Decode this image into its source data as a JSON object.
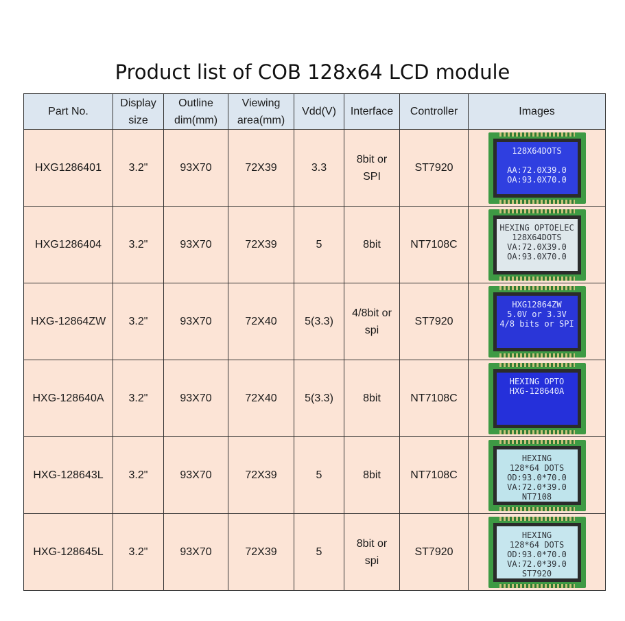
{
  "title": "Product list of COB 128x64 LCD module",
  "headers": {
    "part_no": "Part No.",
    "display_size_1": "Display",
    "display_size_2": "size",
    "outline_1": "Outline",
    "outline_2": "dim(mm)",
    "viewing_1": "Viewing",
    "viewing_2": "area(mm)",
    "vdd": "Vdd(V)",
    "interface": "Interface",
    "controller": "Controller",
    "images": "Images"
  },
  "rows": [
    {
      "part_no": "HXG1286401",
      "size": "3.2\"",
      "outline": "93X70",
      "viewing": "72X39",
      "vdd": "3.3",
      "interface_1": "8bit or",
      "interface_2": "SPI",
      "controller": "ST7920",
      "lcd": {
        "screen": "#2f3fe0",
        "text": "#e8ecff",
        "lines": [
          "128X64DOTS",
          "",
          "AA:72.0X39.0",
          "OA:93.0X70.0"
        ]
      }
    },
    {
      "part_no": "HXG1286404",
      "size": "3.2\"",
      "outline": "93X70",
      "viewing": "72X39",
      "vdd": "5",
      "interface_1": "8bit",
      "interface_2": "",
      "controller": "NT7108C",
      "lcd": {
        "screen": "#dfe8ec",
        "text": "#33363c",
        "lines": [
          "HEXING OPTOELEC",
          "128X64DOTS",
          "VA:72.0X39.0",
          "OA:93.0X70.0"
        ]
      }
    },
    {
      "part_no": "HXG-12864ZW",
      "size": "3.2\"",
      "outline": "93X70",
      "viewing": "72X40",
      "vdd": "5(3.3)",
      "interface_1": "4/8bit or",
      "interface_2": "spi",
      "controller": "ST7920",
      "lcd": {
        "screen": "#2a36d8",
        "text": "#e8ecff",
        "lines": [
          "HXG12864ZW",
          "5.0V or 3.3V",
          "4/8 bits or SPI"
        ]
      }
    },
    {
      "part_no": "HXG-128640A",
      "size": "3.2\"",
      "outline": "93X70",
      "viewing": "72X40",
      "vdd": "5(3.3)",
      "interface_1": "8bit",
      "interface_2": "",
      "controller": "NT7108C",
      "lcd": {
        "screen": "#2530da",
        "text": "#e8ecff",
        "lines": [
          "HEXING OPTO",
          "HXG-128640A"
        ]
      }
    },
    {
      "part_no": "HXG-128643L",
      "size": "3.2\"",
      "outline": "93X70",
      "viewing": "72X39",
      "vdd": "5",
      "interface_1": "8bit",
      "interface_2": "",
      "controller": "NT7108C",
      "lcd": {
        "screen": "#bfe4ec",
        "text": "#30343a",
        "lines": [
          "HEXING",
          "128*64 DOTS",
          "OD:93.0*70.0",
          "VA:72.0*39.0",
          "NT7108"
        ]
      }
    },
    {
      "part_no": "HXG-128645L",
      "size": "3.2\"",
      "outline": "93X70",
      "viewing": "72X39",
      "vdd": "5",
      "interface_1": "8bit or",
      "interface_2": "spi",
      "controller": "ST7920",
      "lcd": {
        "screen": "#c6e6ee",
        "text": "#30343a",
        "lines": [
          "HEXING",
          "128*64 DOTS",
          "OD:93.0*70.0",
          "VA:72.0*39.0",
          "ST7920"
        ]
      }
    }
  ]
}
